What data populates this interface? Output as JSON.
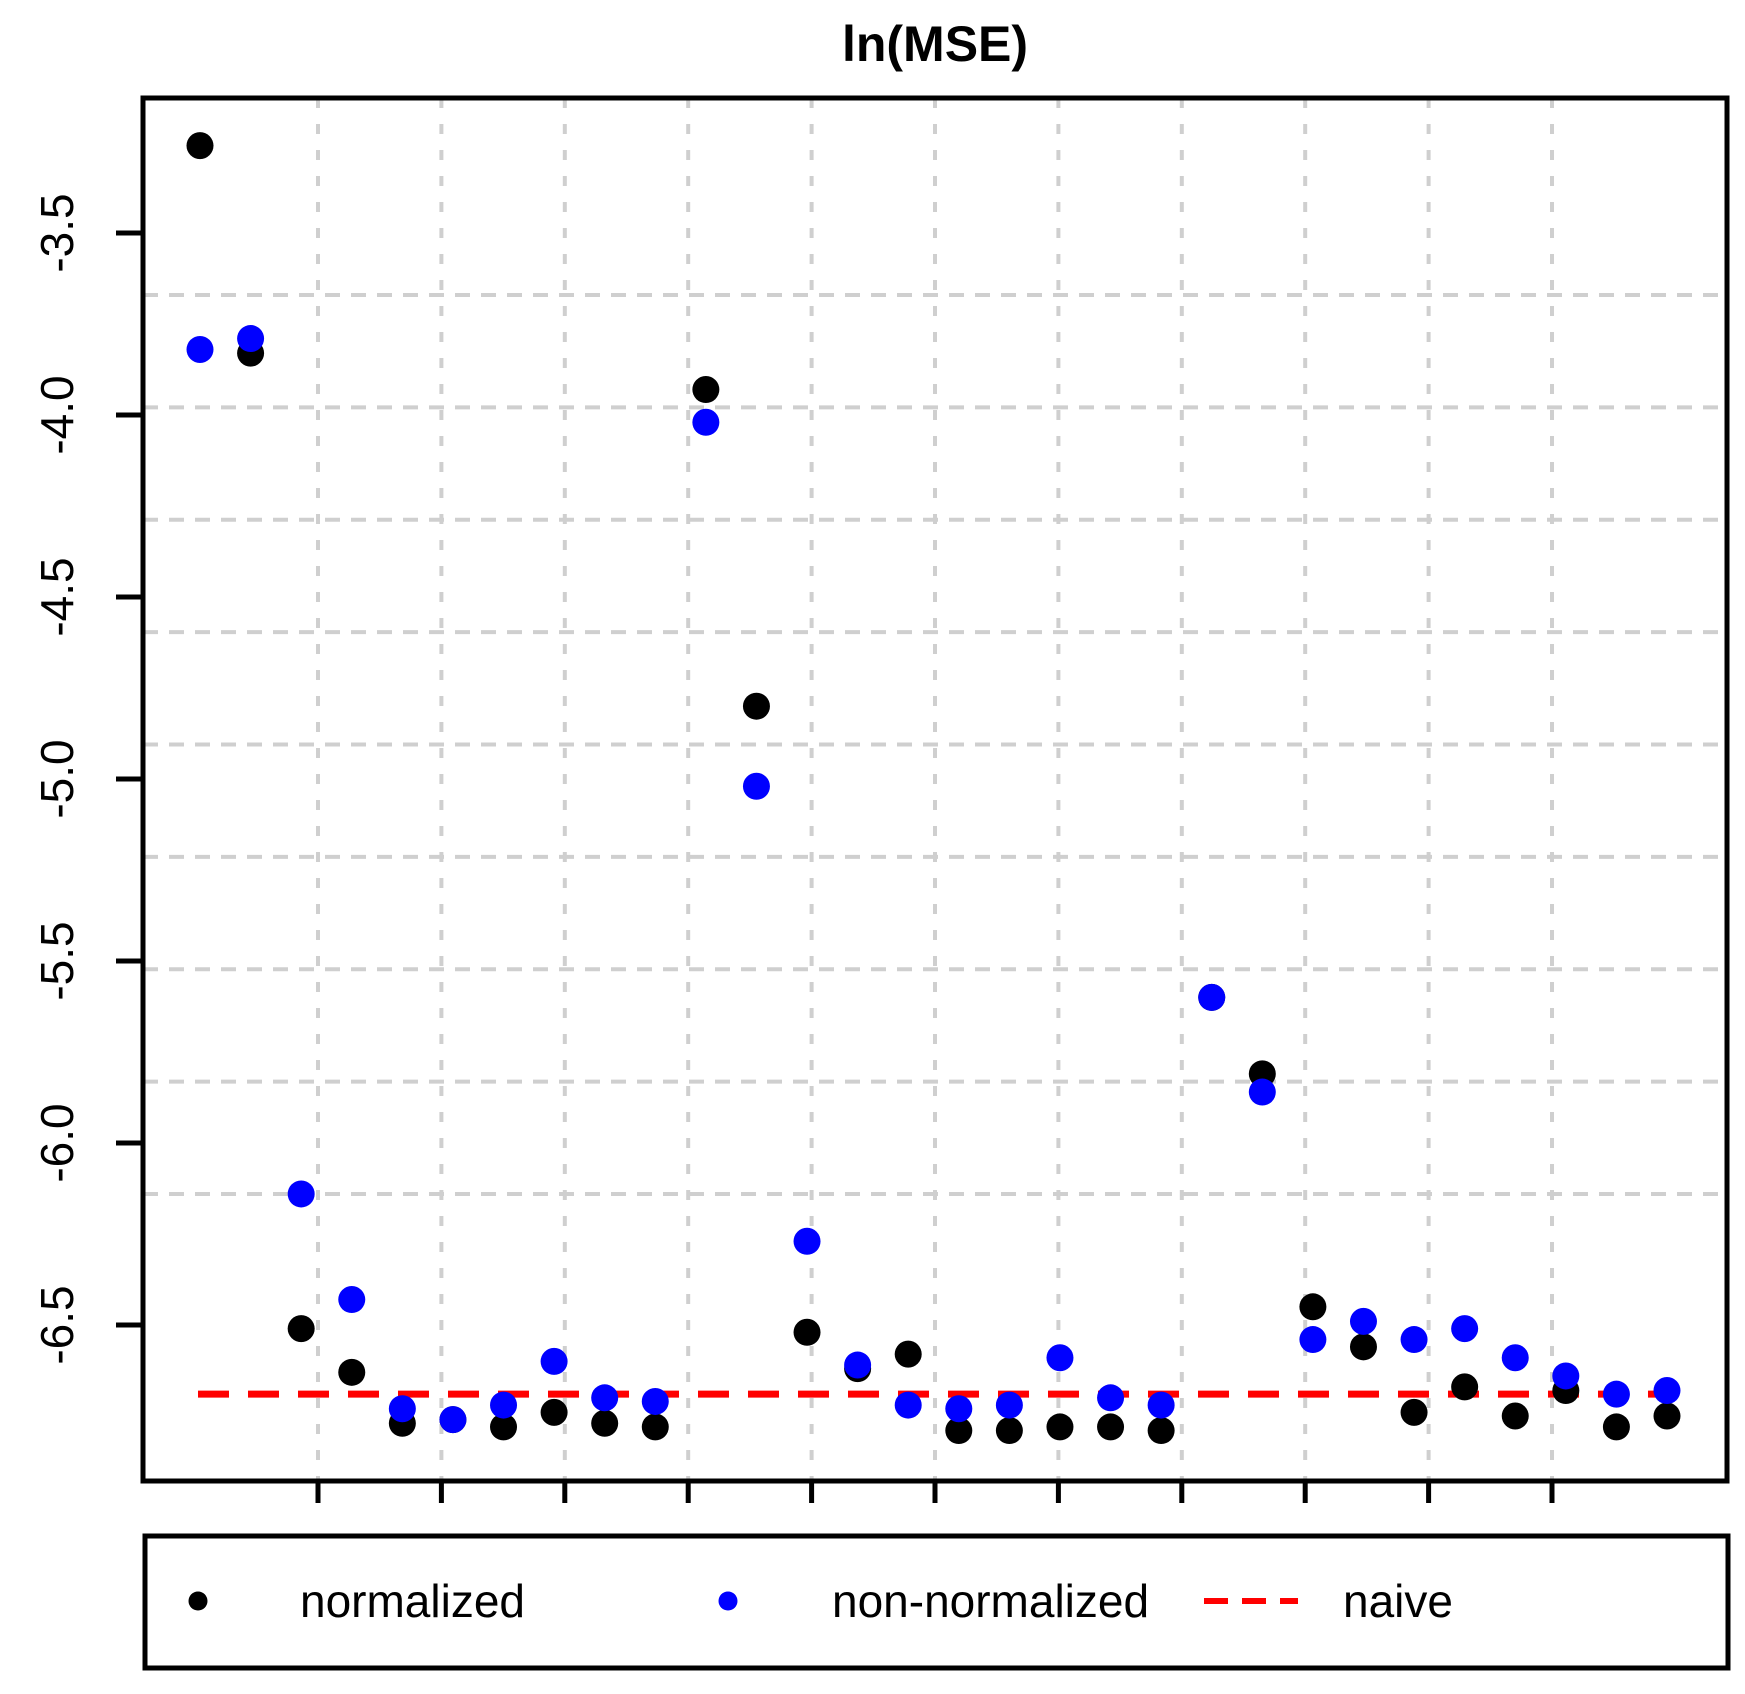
{
  "figure_title": "ln(MSE)",
  "chart_data": {
    "type": "scatter",
    "title": "ln(MSE)",
    "xlabel": "",
    "ylabel": "",
    "grid": true,
    "legend_position": "bottom",
    "y_ticks": [
      -3.5,
      -4.0,
      -4.5,
      -5.0,
      -5.5,
      -6.0,
      -6.5
    ],
    "ylim": [
      -6.93,
      -3.13
    ],
    "x": [
      1,
      2,
      3,
      4,
      5,
      6,
      7,
      8,
      9,
      10,
      11,
      12,
      13,
      14,
      15,
      16,
      17,
      18,
      19,
      20,
      21,
      22,
      23,
      24,
      25,
      26,
      27,
      28,
      29,
      30
    ],
    "series": [
      {
        "name": "normalized",
        "color": "#000000",
        "values": [
          -3.26,
          -3.83,
          -6.51,
          -6.63,
          -6.77,
          -6.76,
          -6.78,
          -6.74,
          -6.77,
          -6.78,
          -3.93,
          -4.8,
          -6.52,
          -6.62,
          -6.58,
          -6.79,
          -6.79,
          -6.78,
          -6.78,
          -6.79,
          -5.6,
          -5.81,
          -6.45,
          -6.56,
          -6.74,
          -6.67,
          -6.75,
          -6.68,
          -6.78,
          -6.75
        ]
      },
      {
        "name": "non-normalized",
        "color": "#0000ff",
        "values": [
          -3.82,
          -3.79,
          -6.14,
          -6.43,
          -6.73,
          -6.76,
          -6.72,
          -6.6,
          -6.7,
          -6.71,
          -4.02,
          -5.02,
          -6.27,
          -6.61,
          -6.72,
          -6.73,
          -6.72,
          -6.59,
          -6.7,
          -6.72,
          -5.6,
          -5.86,
          -6.54,
          -6.49,
          -6.54,
          -6.51,
          -6.59,
          -6.64,
          -6.69,
          -6.68
        ]
      }
    ],
    "reference_line": {
      "name": "naive",
      "value": -6.69,
      "color": "#ff0000",
      "style": "dashed"
    }
  },
  "legend": {
    "items": [
      {
        "label": "normalized",
        "marker": "dot",
        "color": "#000000"
      },
      {
        "label": "non-normalized",
        "marker": "dot",
        "color": "#0000ff"
      },
      {
        "label": "naive",
        "marker": "dashed-line",
        "color": "#ff0000"
      }
    ]
  },
  "colors": {
    "normalized": "#000000",
    "non_normalized": "#0000ff",
    "naive": "#ff0000",
    "grid": "#cfcfcf",
    "axis": "#000000"
  }
}
